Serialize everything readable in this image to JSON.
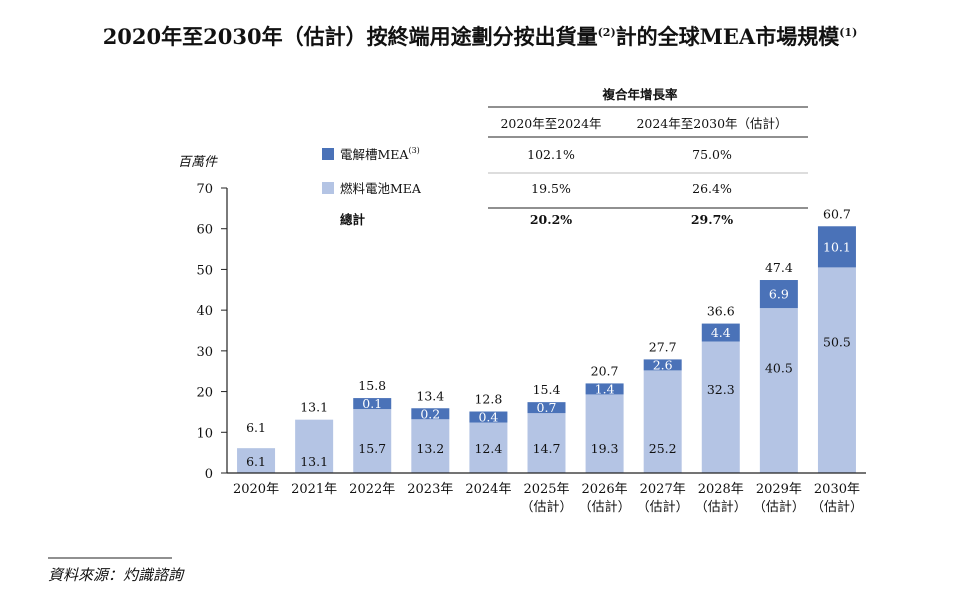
{
  "title": "2020年至2030年（估計）按終端用途劃分按出貨量",
  "title_sup1": "(2)",
  "title_tail": "計的全球MEA市場規模",
  "title_sup2": "(1)",
  "unit_label": "百萬件",
  "cagr_table": {
    "header": "複合年增長率",
    "col1": "2020年至2024年",
    "col2": "2024年至2030年（估計）",
    "rows": [
      {
        "label": "電解槽MEA",
        "sup": "(3)",
        "v1": "102.1%",
        "v2": "75.0%"
      },
      {
        "label": "燃料電池MEA",
        "sup": "",
        "v1": "19.5%",
        "v2": "26.4%"
      },
      {
        "label": "總計",
        "sup": "",
        "v1": "20.2%",
        "v2": "29.7%"
      }
    ]
  },
  "chart_data": {
    "type": "bar",
    "stacked": true,
    "ylim": [
      0,
      70
    ],
    "yticks": [
      0,
      10,
      20,
      30,
      40,
      50,
      60,
      70
    ],
    "ylabel": "百萬件",
    "categories": [
      {
        "year": "2020年",
        "note": ""
      },
      {
        "year": "2021年",
        "note": ""
      },
      {
        "year": "2022年",
        "note": ""
      },
      {
        "year": "2023年",
        "note": ""
      },
      {
        "year": "2024年",
        "note": ""
      },
      {
        "year": "2025年",
        "note": "（估計）"
      },
      {
        "year": "2026年",
        "note": "（估計）"
      },
      {
        "year": "2027年",
        "note": "（估計）"
      },
      {
        "year": "2028年",
        "note": "（估計）"
      },
      {
        "year": "2029年",
        "note": "（估計）"
      },
      {
        "year": "2030年",
        "note": "（估計）"
      }
    ],
    "series": [
      {
        "name": "燃料電池MEA",
        "color": "#b4c4e4",
        "values": [
          6.1,
          13.1,
          15.7,
          13.2,
          12.4,
          14.7,
          19.3,
          25.2,
          32.3,
          40.5,
          50.5
        ]
      },
      {
        "name": "電解槽MEA",
        "color": "#4a72b8",
        "values": [
          null,
          null,
          0.1,
          0.2,
          0.4,
          0.7,
          1.4,
          2.6,
          4.4,
          6.9,
          10.1
        ]
      }
    ],
    "totals": [
      6.1,
      13.1,
      15.8,
      13.4,
      12.8,
      15.4,
      20.7,
      27.7,
      36.6,
      47.4,
      60.7
    ]
  },
  "source": "資料來源：灼識諮詢"
}
